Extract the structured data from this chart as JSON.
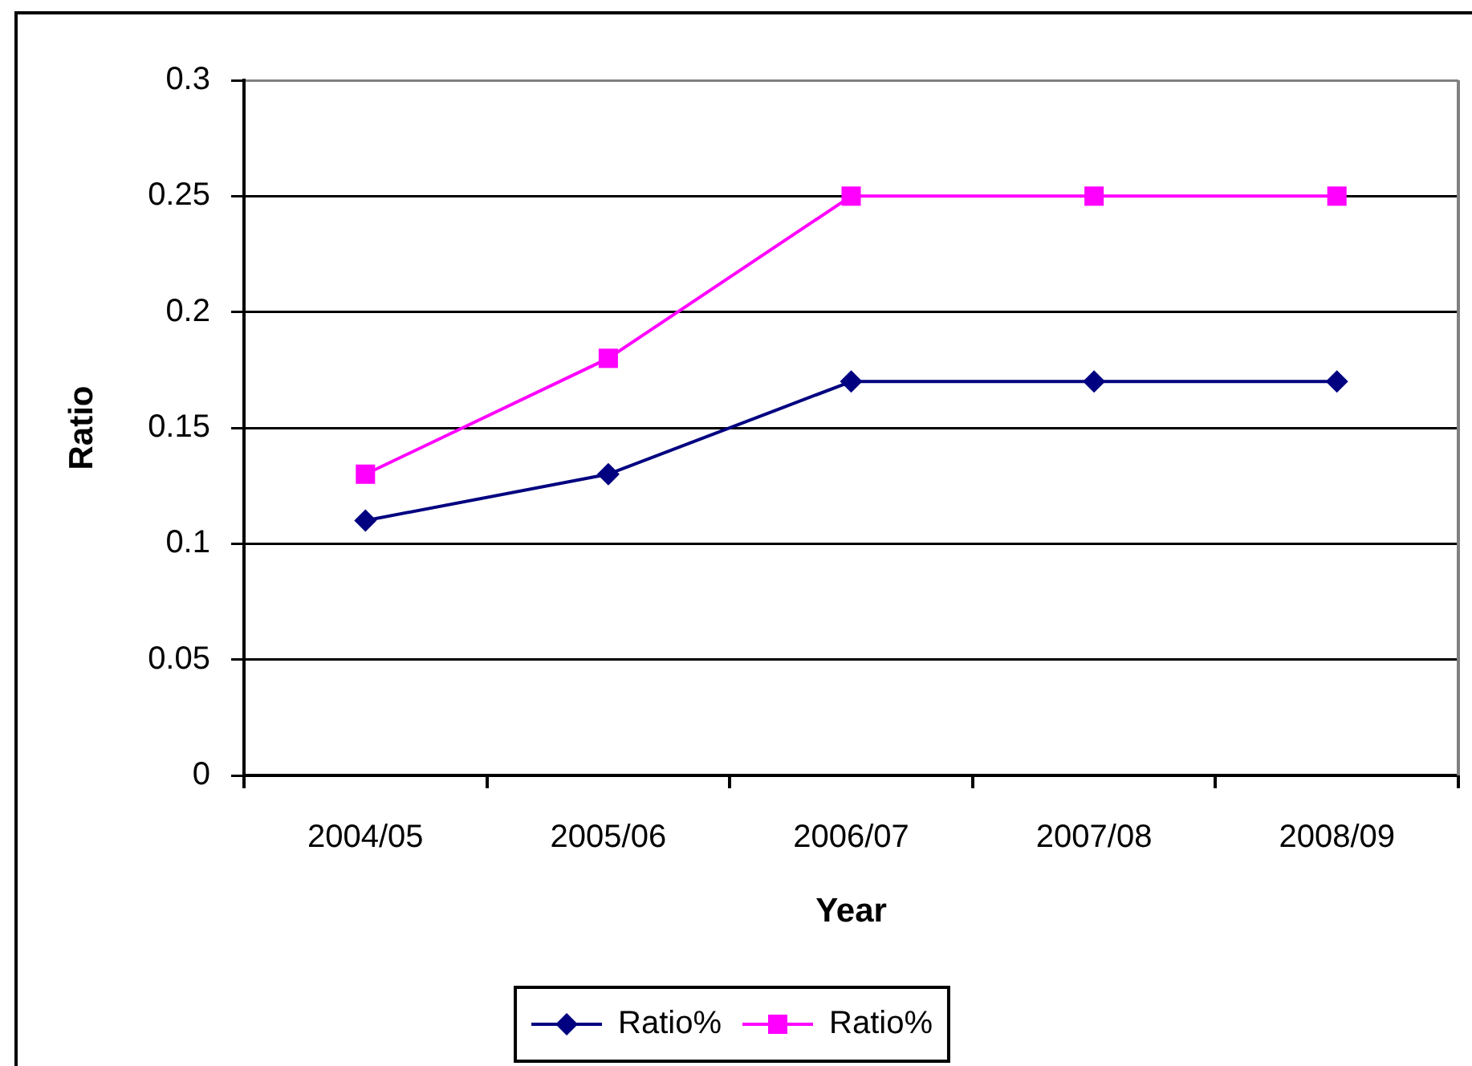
{
  "chart_data": {
    "type": "line",
    "xlabel": "Year",
    "ylabel": "Ratio",
    "categories": [
      "2004/05",
      "2005/06",
      "2006/07",
      "2007/08",
      "2008/09"
    ],
    "series": [
      {
        "name": "Ratio%",
        "color": "#000080",
        "marker": "diamond",
        "values": [
          0.11,
          0.13,
          0.17,
          0.17,
          0.17
        ]
      },
      {
        "name": "Ratio%",
        "color": "#ff00ff",
        "marker": "square",
        "values": [
          0.13,
          0.18,
          0.25,
          0.25,
          0.25
        ]
      }
    ],
    "ylim": [
      0,
      0.3
    ],
    "yticks": [
      0,
      0.05,
      0.1,
      0.15,
      0.2,
      0.25,
      0.3
    ],
    "grid": "y",
    "legend": "bottom",
    "line_style": "solid"
  }
}
